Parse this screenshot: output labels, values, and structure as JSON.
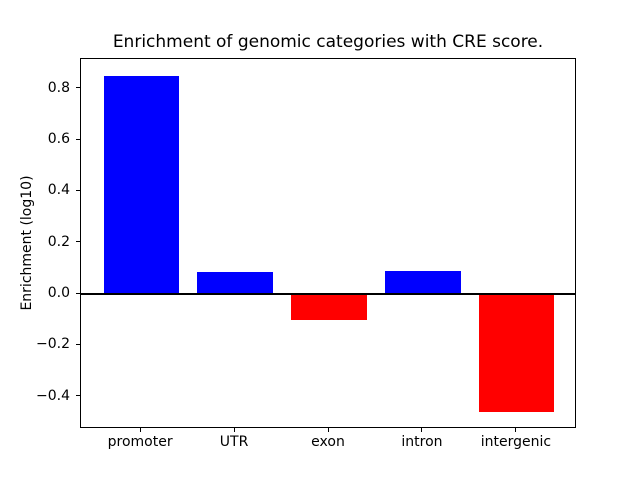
{
  "figure": {
    "background": "#ffffff",
    "text_color": "#000000"
  },
  "chart_data": {
    "type": "bar",
    "title": "Enrichment of genomic categories with CRE score.",
    "xlabel": "",
    "ylabel": "Enrichment (log10)",
    "categories": [
      "promoter",
      "UTR",
      "exon",
      "intron",
      "intergenic"
    ],
    "values": [
      0.85,
      0.085,
      -0.1,
      0.09,
      -0.46
    ],
    "bar_colors": [
      "#0000ff",
      "#0000ff",
      "#ff0000",
      "#0000ff",
      "#ff0000"
    ],
    "positive_color": "#0000ff",
    "negative_color": "#ff0000",
    "bar_width_frac": 0.8,
    "xlim": [
      -0.64,
      4.64
    ],
    "ylim": [
      -0.5255,
      0.9155
    ],
    "yticks": [
      {
        "value": 0.8,
        "label": "0.8"
      },
      {
        "value": 0.6,
        "label": "0.6"
      },
      {
        "value": 0.4,
        "label": "0.4"
      },
      {
        "value": 0.2,
        "label": "0.2"
      },
      {
        "value": 0.0,
        "label": "0.0"
      },
      {
        "value": -0.2,
        "label": "−0.2"
      },
      {
        "value": -0.4,
        "label": "−0.4"
      }
    ],
    "zero_line": true,
    "grid": false,
    "legend_position": "none",
    "frame": true
  }
}
